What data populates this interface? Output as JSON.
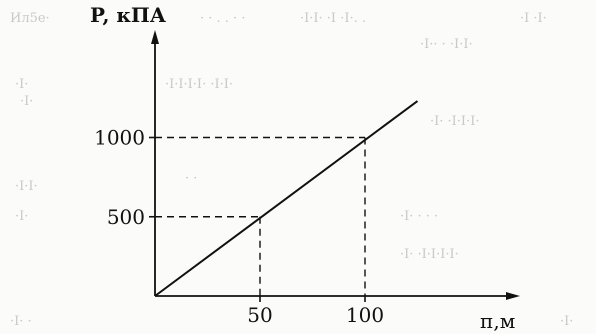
{
  "chart_data": {
    "type": "line",
    "ylabel": "P, кПА",
    "xlabel": "п,м",
    "x_ticks": [
      50,
      100
    ],
    "y_ticks": [
      500,
      1000
    ],
    "xlim": [
      0,
      175
    ],
    "ylim": [
      0,
      1700
    ],
    "series": [
      {
        "x": [
          0,
          125
        ],
        "y": [
          0,
          1230
        ]
      }
    ],
    "reference_points": [
      {
        "x": 50,
        "y": 500
      },
      {
        "x": 100,
        "y": 1000
      }
    ],
    "grid": false
  },
  "colors": {
    "ink": "#111111",
    "background": "#fbfbf9"
  }
}
